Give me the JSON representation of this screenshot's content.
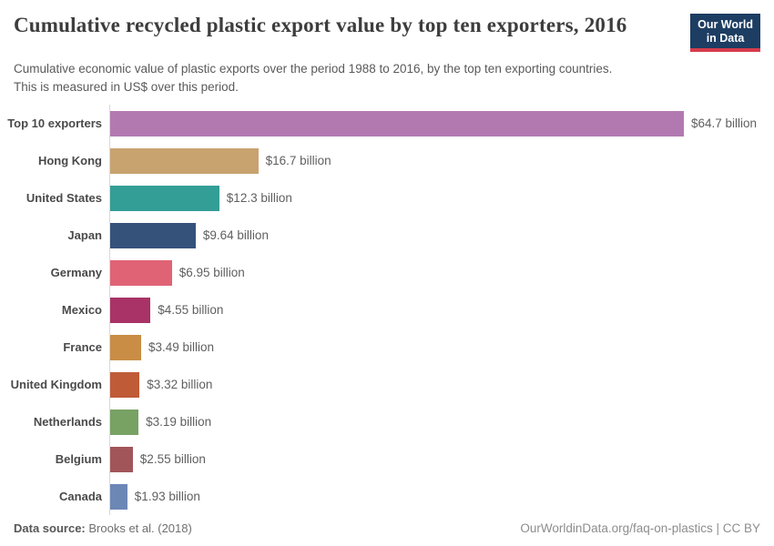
{
  "header": {
    "title": "Cumulative recycled plastic export value by top ten exporters, 2016",
    "subtitle_line1": "Cumulative economic value of plastic exports over the period 1988 to 2016, by the top ten exporting countries.",
    "subtitle_line2": "This is measured in US$ over this period."
  },
  "logo": {
    "line1": "Our World",
    "line2": "in Data",
    "bg_color": "#1d3d63",
    "accent_color": "#d73c4c"
  },
  "chart_data": {
    "type": "bar",
    "orientation": "horizontal",
    "title": "Cumulative recycled plastic export value by top ten exporters, 2016",
    "unit": "US$ billion",
    "categories": [
      "Top 10 exporters",
      "Hong Kong",
      "United States",
      "Japan",
      "Germany",
      "Mexico",
      "France",
      "United Kingdom",
      "Netherlands",
      "Belgium",
      "Canada"
    ],
    "values": [
      64.7,
      16.7,
      12.3,
      9.64,
      6.95,
      4.55,
      3.49,
      3.32,
      3.19,
      2.55,
      1.93
    ],
    "value_labels": [
      "$64.7 billion",
      "$16.7 billion",
      "$12.3 billion",
      "$9.64 billion",
      "$6.95 billion",
      "$4.55 billion",
      "$3.49 billion",
      "$3.32 billion",
      "$3.19 billion",
      "$2.55 billion",
      "$1.93 billion"
    ],
    "bar_colors": [
      "#b279b1",
      "#c8a26f",
      "#339e96",
      "#35527b",
      "#e06375",
      "#a93366",
      "#c98d45",
      "#c05b38",
      "#77a264",
      "#a25559",
      "#6c87b6"
    ],
    "xlim": [
      0,
      66.5
    ],
    "grid": false,
    "legend": false,
    "axis_line_color": "#d8d8d8"
  },
  "footer": {
    "datasource_label": "Data source:",
    "datasource_value": "Brooks et al. (2018)",
    "credit": "OurWorldinData.org/faq-on-plastics | CC BY"
  }
}
